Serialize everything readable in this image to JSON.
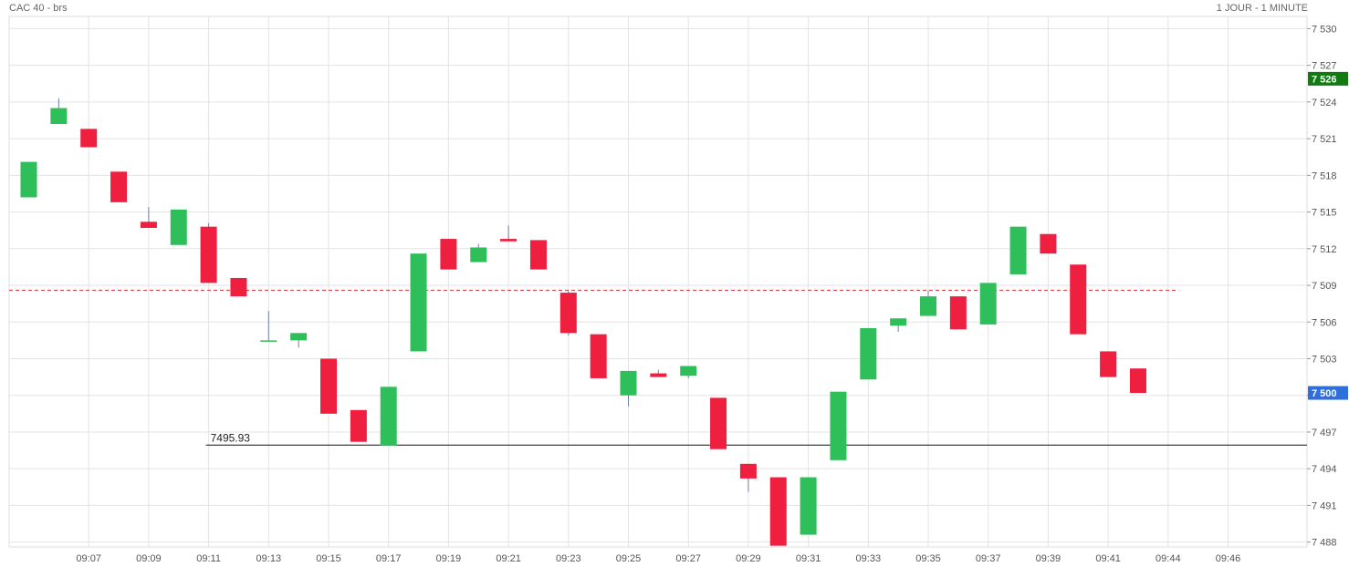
{
  "header": {
    "title": "CAC 40 - brs",
    "period": "1 JOUR - 1 MINUTE"
  },
  "chart_data": {
    "type": "candlestick",
    "y_ticks": [
      "7 488",
      "7 491",
      "7 494",
      "7 497",
      "7 500",
      "7 503",
      "7 506",
      "7 509",
      "7 512",
      "7 515",
      "7 518",
      "7 521",
      "7 524",
      "7 527",
      "7 530"
    ],
    "x_ticks": [
      {
        "i": 2,
        "label": "09:07"
      },
      {
        "i": 4,
        "label": "09:09"
      },
      {
        "i": 6,
        "label": "09:11"
      },
      {
        "i": 8,
        "label": "09:13"
      },
      {
        "i": 10,
        "label": "09:15"
      },
      {
        "i": 12,
        "label": "09:17"
      },
      {
        "i": 14,
        "label": "09:19"
      },
      {
        "i": 16,
        "label": "09:21"
      },
      {
        "i": 18,
        "label": "09:23"
      },
      {
        "i": 20,
        "label": "09:25"
      },
      {
        "i": 22,
        "label": "09:27"
      },
      {
        "i": 24,
        "label": "09:29"
      },
      {
        "i": 26,
        "label": "09:31"
      },
      {
        "i": 28,
        "label": "09:33"
      },
      {
        "i": 30,
        "label": "09:35"
      },
      {
        "i": 32,
        "label": "09:37"
      },
      {
        "i": 34,
        "label": "09:39"
      },
      {
        "i": 36,
        "label": "09:41"
      },
      {
        "i": 38,
        "label": "09:44"
      },
      {
        "i": 40,
        "label": "09:46"
      }
    ],
    "ylim": [
      7487.6,
      7531
    ],
    "candles": [
      {
        "o": 7516.2,
        "c": 7519.1,
        "h": 7519.1,
        "l": 7516.2
      },
      {
        "o": 7522.2,
        "c": 7523.5,
        "h": 7524.3,
        "l": 7522.2
      },
      {
        "o": 7521.8,
        "c": 7520.3,
        "h": 7521.8,
        "l": 7520.3
      },
      {
        "o": 7518.3,
        "c": 7515.8,
        "h": 7518.3,
        "l": 7515.8
      },
      {
        "o": 7514.2,
        "c": 7513.7,
        "h": 7515.4,
        "l": 7513.7
      },
      {
        "o": 7512.3,
        "c": 7515.2,
        "h": 7515.2,
        "l": 7512.3
      },
      {
        "o": 7513.8,
        "c": 7509.2,
        "h": 7514.1,
        "l": 7509.2
      },
      {
        "o": 7509.6,
        "c": 7508.1,
        "h": 7509.6,
        "l": 7508.1
      },
      {
        "o": 7504.5,
        "c": 7504.5,
        "h": 7506.9,
        "l": 7504.5
      },
      {
        "o": 7504.5,
        "c": 7505.1,
        "h": 7505.1,
        "l": 7503.9
      },
      {
        "o": 7503.0,
        "c": 7498.5,
        "h": 7503.0,
        "l": 7498.5
      },
      {
        "o": 7498.8,
        "c": 7496.2,
        "h": 7498.8,
        "l": 7496.2
      },
      {
        "o": 7495.9,
        "c": 7500.7,
        "h": 7500.7,
        "l": 7495.9
      },
      {
        "o": 7503.6,
        "c": 7511.6,
        "h": 7511.6,
        "l": 7503.6
      },
      {
        "o": 7512.8,
        "c": 7510.3,
        "h": 7512.8,
        "l": 7510.3
      },
      {
        "o": 7510.9,
        "c": 7512.1,
        "h": 7512.4,
        "l": 7510.9
      },
      {
        "o": 7512.8,
        "c": 7512.6,
        "h": 7513.9,
        "l": 7512.6
      },
      {
        "o": 7512.7,
        "c": 7510.3,
        "h": 7512.7,
        "l": 7510.3
      },
      {
        "o": 7508.4,
        "c": 7505.1,
        "h": 7508.6,
        "l": 7504.9
      },
      {
        "o": 7505.0,
        "c": 7501.4,
        "h": 7505.0,
        "l": 7501.4
      },
      {
        "o": 7500.0,
        "c": 7502.0,
        "h": 7502.0,
        "l": 7499.1
      },
      {
        "o": 7501.8,
        "c": 7501.5,
        "h": 7502.1,
        "l": 7501.5
      },
      {
        "o": 7501.6,
        "c": 7502.4,
        "h": 7502.4,
        "l": 7501.4
      },
      {
        "o": 7499.8,
        "c": 7495.6,
        "h": 7499.8,
        "l": 7495.6
      },
      {
        "o": 7494.4,
        "c": 7493.2,
        "h": 7494.4,
        "l": 7492.1
      },
      {
        "o": 7493.3,
        "c": 7487.7,
        "h": 7493.3,
        "l": 7487.7
      },
      {
        "o": 7488.6,
        "c": 7493.3,
        "h": 7493.3,
        "l": 7488.6
      },
      {
        "o": 7494.7,
        "c": 7500.3,
        "h": 7500.3,
        "l": 7494.7
      },
      {
        "o": 7501.3,
        "c": 7505.5,
        "h": 7505.5,
        "l": 7501.3
      },
      {
        "o": 7505.7,
        "c": 7506.3,
        "h": 7506.3,
        "l": 7505.2
      },
      {
        "o": 7506.5,
        "c": 7508.1,
        "h": 7508.6,
        "l": 7506.5
      },
      {
        "o": 7508.1,
        "c": 7505.4,
        "h": 7508.1,
        "l": 7505.4
      },
      {
        "o": 7505.8,
        "c": 7509.2,
        "h": 7509.2,
        "l": 7505.8
      },
      {
        "o": 7509.9,
        "c": 7513.8,
        "h": 7513.8,
        "l": 7509.9
      },
      {
        "o": 7513.2,
        "c": 7511.6,
        "h": 7513.2,
        "l": 7511.6
      },
      {
        "o": 7510.7,
        "c": 7505.0,
        "h": 7510.7,
        "l": 7505.0
      },
      {
        "o": 7503.6,
        "c": 7501.5,
        "h": 7503.6,
        "l": 7501.5
      },
      {
        "o": 7502.2,
        "c": 7500.2,
        "h": 7502.2,
        "l": 7500.2
      }
    ],
    "reference_line": {
      "value": 7508.6,
      "style": "dashed",
      "color": "#e0303a"
    },
    "support_line": {
      "value": 7495.93,
      "label": "7495.93",
      "start_index": 6
    },
    "last_price": {
      "value": 7500.2,
      "label": "7 500",
      "color": "#2f6fdc"
    },
    "high_tag": {
      "value": 7525.9,
      "label": "7 526",
      "color": "#117a11"
    },
    "up_color": "#2ebf5a",
    "down_color": "#ee1f3f",
    "grid": true
  }
}
